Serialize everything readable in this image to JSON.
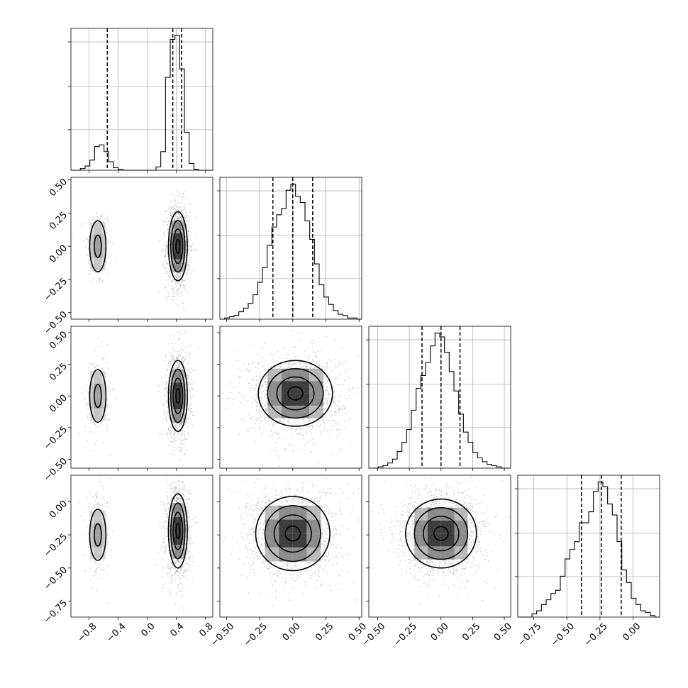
{
  "chart_data": {
    "type": "corner",
    "n_params": 4,
    "colors": {
      "ink": "#000000",
      "grid": "#b0b0b0",
      "points": "#9e9e9e",
      "density_min": "#f4f4f4",
      "density_max": "#000000"
    },
    "grid": true,
    "params": [
      {
        "index": 0,
        "range": [
          -1.05,
          0.9
        ],
        "ticks": [
          -0.8,
          -0.4,
          0.0,
          0.4,
          0.8
        ],
        "tick_labels": [
          "−0.8",
          "−0.4",
          "0.0",
          "0.4",
          "0.8"
        ],
        "quantiles": [
          -0.55,
          0.35,
          0.47
        ],
        "hist": {
          "edges": [
            -1.05,
            -0.985,
            -0.92,
            -0.855,
            -0.79,
            -0.725,
            -0.66,
            -0.595,
            -0.53,
            -0.465,
            -0.4,
            -0.335,
            -0.27,
            -0.205,
            -0.14,
            -0.075,
            -0.01,
            0.055,
            0.12,
            0.185,
            0.25,
            0.315,
            0.38,
            0.445,
            0.51,
            0.575,
            0.64,
            0.705,
            0.77,
            0.835,
            0.9
          ],
          "counts": [
            0,
            0,
            2,
            5,
            12,
            28,
            30,
            22,
            10,
            3,
            1,
            0,
            0,
            0,
            0,
            0,
            0,
            0,
            4,
            22,
            110,
            155,
            160,
            120,
            45,
            8,
            1,
            0,
            0,
            0
          ]
        }
      },
      {
        "index": 1,
        "range": [
          -0.55,
          0.52
        ],
        "ticks": [
          -0.5,
          -0.25,
          0.0,
          0.25,
          0.5
        ],
        "tick_labels": [
          "−0.50",
          "−0.25",
          "0.00",
          "0.25",
          "0.50"
        ],
        "quantiles": [
          -0.15,
          0.0,
          0.15
        ],
        "hist": {
          "edges": [
            -0.55,
            -0.5143,
            -0.4787,
            -0.443,
            -0.4073,
            -0.3717,
            -0.336,
            -0.3003,
            -0.2647,
            -0.229,
            -0.1933,
            -0.1577,
            -0.122,
            -0.0863,
            -0.0507,
            -0.015,
            0.0207,
            0.0563,
            0.092,
            0.1277,
            0.1633,
            0.199,
            0.2347,
            0.2703,
            0.306,
            0.3417,
            0.3773,
            0.413,
            0.4487,
            0.4843,
            0.52
          ],
          "counts": [
            0,
            1,
            2,
            3,
            6,
            9,
            13,
            20,
            30,
            42,
            60,
            75,
            85,
            90,
            105,
            110,
            100,
            95,
            80,
            65,
            45,
            28,
            18,
            12,
            7,
            4,
            3,
            1,
            1,
            0
          ]
        }
      },
      {
        "index": 2,
        "range": [
          -0.57,
          0.55
        ],
        "ticks": [
          -0.5,
          -0.25,
          0.0,
          0.25,
          0.5
        ],
        "tick_labels": [
          "−0.50",
          "−0.25",
          "0.00",
          "0.25",
          "0.50"
        ],
        "quantiles": [
          -0.15,
          0.0,
          0.15
        ],
        "hist": {
          "edges": [
            -0.57,
            -0.5327,
            -0.4953,
            -0.458,
            -0.4207,
            -0.3833,
            -0.346,
            -0.3087,
            -0.2713,
            -0.234,
            -0.1967,
            -0.1593,
            -0.122,
            -0.0847,
            -0.0473,
            -0.01,
            0.0273,
            0.0647,
            0.102,
            0.1393,
            0.1767,
            0.214,
            0.2513,
            0.2887,
            0.326,
            0.3633,
            0.4007,
            0.438,
            0.4753,
            0.5127,
            0.55
          ],
          "counts": [
            0,
            0,
            1,
            2,
            4,
            7,
            13,
            20,
            30,
            45,
            62,
            72,
            82,
            95,
            105,
            102,
            90,
            75,
            60,
            42,
            28,
            20,
            12,
            8,
            5,
            3,
            2,
            1,
            0,
            0
          ]
        }
      },
      {
        "index": 3,
        "range": [
          -0.87,
          0.2
        ],
        "ticks": [
          -0.75,
          -0.5,
          -0.25,
          0.0
        ],
        "tick_labels": [
          "−0.75",
          "−0.50",
          "−0.25",
          "0.00"
        ],
        "quantiles": [
          -0.39,
          -0.24,
          -0.09
        ],
        "hist": {
          "edges": [
            -0.87,
            -0.8343,
            -0.7987,
            -0.763,
            -0.7273,
            -0.6917,
            -0.656,
            -0.6203,
            -0.5847,
            -0.549,
            -0.5133,
            -0.4777,
            -0.442,
            -0.4063,
            -0.3707,
            -0.335,
            -0.2993,
            -0.2637,
            -0.228,
            -0.1923,
            -0.1567,
            -0.121,
            -0.0853,
            -0.0497,
            -0.014,
            0.0217,
            0.0573,
            0.093,
            0.1287,
            0.1643,
            0.2
          ],
          "counts": [
            0,
            0,
            0,
            2,
            4,
            8,
            11,
            15,
            17,
            26,
            37,
            43,
            48,
            60,
            60,
            67,
            80,
            86,
            83,
            72,
            65,
            48,
            30,
            22,
            12,
            8,
            4,
            3,
            1,
            0
          ]
        }
      }
    ],
    "pairs": [
      {
        "x": 0,
        "y": 1,
        "clusters": [
          {
            "cx": -0.68,
            "cy": 0.0,
            "sx": 0.07,
            "sy": 0.12,
            "weight": 0.15
          },
          {
            "cx": 0.42,
            "cy": 0.0,
            "sx": 0.065,
            "sy": 0.13,
            "weight": 0.85
          }
        ]
      },
      {
        "x": 0,
        "y": 2,
        "clusters": [
          {
            "cx": -0.68,
            "cy": 0.0,
            "sx": 0.07,
            "sy": 0.13,
            "weight": 0.15
          },
          {
            "cx": 0.42,
            "cy": 0.0,
            "sx": 0.065,
            "sy": 0.14,
            "weight": 0.85
          }
        ]
      },
      {
        "x": 0,
        "y": 3,
        "clusters": [
          {
            "cx": -0.68,
            "cy": -0.25,
            "sx": 0.07,
            "sy": 0.12,
            "weight": 0.15
          },
          {
            "cx": 0.42,
            "cy": -0.22,
            "sx": 0.065,
            "sy": 0.14,
            "weight": 0.85
          }
        ]
      },
      {
        "x": 1,
        "y": 2,
        "clusters": [
          {
            "cx": 0.02,
            "cy": 0.02,
            "sx": 0.14,
            "sy": 0.13,
            "weight": 1.0
          }
        ]
      },
      {
        "x": 1,
        "y": 3,
        "clusters": [
          {
            "cx": 0.0,
            "cy": -0.24,
            "sx": 0.14,
            "sy": 0.14,
            "weight": 1.0
          }
        ]
      },
      {
        "x": 2,
        "y": 3,
        "clusters": [
          {
            "cx": 0.0,
            "cy": -0.24,
            "sx": 0.14,
            "sy": 0.13,
            "weight": 1.0
          }
        ]
      }
    ]
  }
}
